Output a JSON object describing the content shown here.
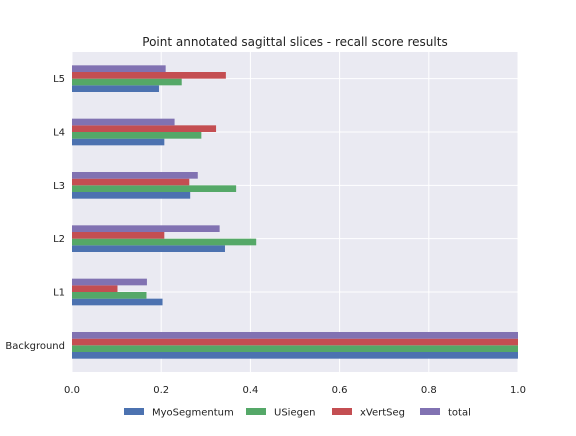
{
  "chart_data": {
    "type": "bar",
    "orientation": "horizontal",
    "title": "Point annotated sagittal slices - recall score results",
    "xlabel": "",
    "ylabel": "",
    "xlim": [
      0.0,
      1.0
    ],
    "xticks": [
      "0.0",
      "0.2",
      "0.4",
      "0.6",
      "0.8",
      "1.0"
    ],
    "categories": [
      "Background",
      "L1",
      "L2",
      "L3",
      "L4",
      "L5"
    ],
    "series": [
      {
        "name": "MyoSegmentum",
        "color": "#4c72b0",
        "values": [
          1.0,
          0.203,
          0.343,
          0.265,
          0.207,
          0.195
        ]
      },
      {
        "name": "USiegen",
        "color": "#55a868",
        "values": [
          1.0,
          0.167,
          0.413,
          0.368,
          0.29,
          0.246
        ]
      },
      {
        "name": "xVertSeg",
        "color": "#c44e52",
        "values": [
          1.0,
          0.102,
          0.207,
          0.263,
          0.323,
          0.345
        ]
      },
      {
        "name": "total",
        "color": "#8172b2",
        "values": [
          1.0,
          0.168,
          0.331,
          0.282,
          0.23,
          0.21
        ]
      }
    ],
    "grid": true,
    "legend_position": "bottom"
  }
}
